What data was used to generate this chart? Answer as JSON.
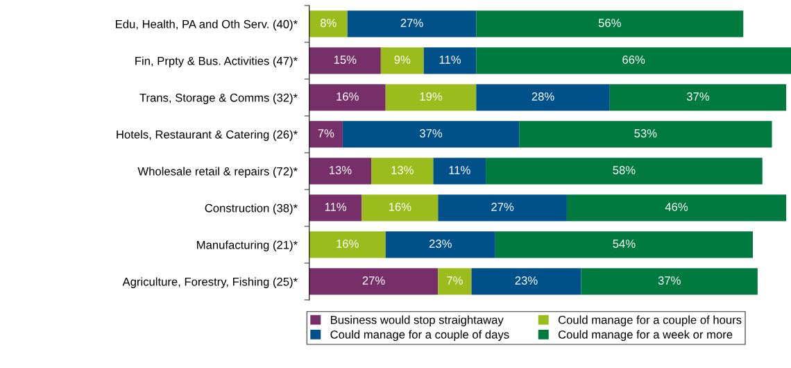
{
  "chart_data": {
    "type": "bar",
    "orientation": "horizontal",
    "stacked": true,
    "legend": "bottom",
    "categories": [
      "Edu, Health, PA and Oth Serv. (40)*",
      "Fin, Prpty & Bus. Activities (47)*",
      "Trans, Storage & Comms (32)*",
      "Hotels, Restaurant & Catering (26)*",
      "Wholesale retail & repairs (72)*",
      "Construction (38)*",
      "Manufacturing (21)*",
      "Agriculture, Forestry, Fishing (25)*"
    ],
    "series": [
      {
        "name": "Business would stop straightaway",
        "color": "#772f69",
        "values": [
          null,
          15,
          16,
          7,
          13,
          11,
          null,
          27
        ],
        "value_labels": [
          null,
          "15%",
          "16%",
          "7%",
          "13%",
          "11%",
          null,
          "27%"
        ]
      },
      {
        "name": "Could manage for a couple of hours",
        "color": "#9cbb1c",
        "values": [
          8,
          9,
          19,
          null,
          13,
          16,
          16,
          7
        ],
        "value_labels": [
          "8%",
          "9%",
          "19%",
          null,
          "13%",
          "16%",
          "16%",
          "7%"
        ]
      },
      {
        "name": "Could manage for a couple of days",
        "color": "#00508a",
        "values": [
          27,
          11,
          28,
          37,
          11,
          27,
          23,
          23
        ],
        "value_labels": [
          "27%",
          "11%",
          "28%",
          "37%",
          "11%",
          "27%",
          "23%",
          "23%"
        ]
      },
      {
        "name": "Could manage for a week or more",
        "color": "#007a3e",
        "values": [
          56,
          66,
          37,
          53,
          58,
          46,
          54,
          37
        ],
        "value_labels": [
          "56%",
          "66%",
          "37%",
          "53%",
          "58%",
          "46%",
          "54%",
          "37%"
        ]
      }
    ]
  }
}
